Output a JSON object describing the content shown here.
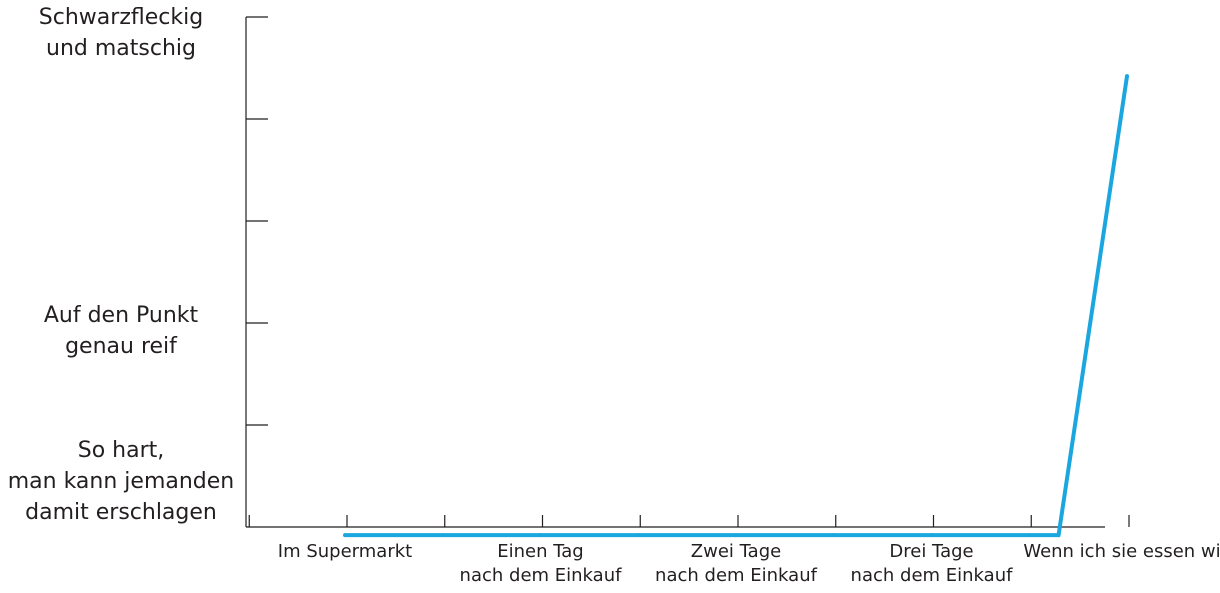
{
  "chart_data": {
    "type": "line",
    "title": "",
    "xlabel": "",
    "ylabel": "",
    "categories": [
      "Im Supermarkt",
      "Einen Tag nach dem Einkauf",
      "Zwei Tage nach dem Einkauf",
      "Drei Tage nach dem Einkauf",
      "Wenn ich sie essen will"
    ],
    "x_tick_labels": [
      [
        "Im Supermarkt"
      ],
      [
        "Einen Tag",
        "nach dem Einkauf"
      ],
      [
        "Zwei Tage",
        "nach dem Einkauf"
      ],
      [
        "Drei Tage",
        "nach dem Einkauf"
      ],
      [
        "Wenn ich sie essen will"
      ]
    ],
    "y_tick_labels": [
      {
        "value": 0,
        "lines": [
          "So hart,",
          "man kann jemanden",
          "damit erschlagen"
        ]
      },
      {
        "value": 2,
        "lines": [
          "Auf den Punkt",
          "genau reif"
        ]
      },
      {
        "value": 4,
        "lines": [
          "Schwarzfleckig",
          "und matschig"
        ]
      }
    ],
    "ylim": [
      0,
      5
    ],
    "y_ticks": [
      0,
      1,
      2,
      3,
      4,
      5
    ],
    "x_minor_ticks_per_category": 2,
    "series": [
      {
        "color": "#1aa7df",
        "x": [
          0,
          0.5,
          1,
          1.5,
          2,
          2.5,
          3,
          3.5,
          3.65,
          4
        ],
        "y": [
          0,
          0,
          0,
          0,
          0,
          0,
          0,
          0,
          0,
          4.5
        ]
      }
    ],
    "grid": false,
    "legend": "none"
  }
}
